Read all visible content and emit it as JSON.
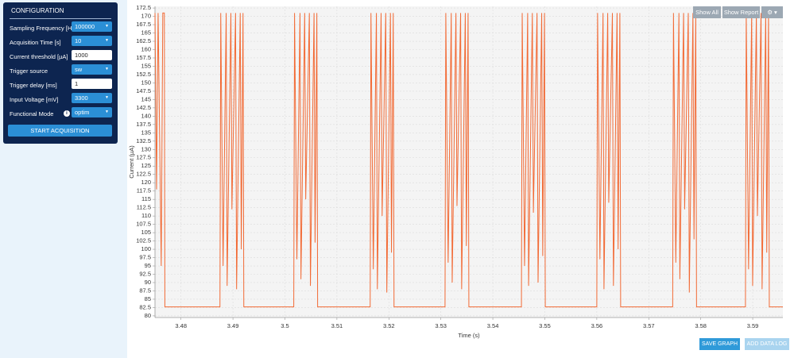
{
  "panel": {
    "title": "CONFIGURATION",
    "fields": [
      {
        "label": "Sampling Frequency [Hz]",
        "value": "100000"
      },
      {
        "label": "Acquisition Time [s]",
        "value": "10"
      },
      {
        "label": "Current threshold [µA]",
        "value": "1000"
      },
      {
        "label": "Trigger source",
        "value": "sw"
      },
      {
        "label": "Trigger delay [ms]",
        "value": "1"
      },
      {
        "label": "Input Voltage [mV]",
        "value": "3300"
      },
      {
        "label": "Functional Mode",
        "value": "optim"
      }
    ],
    "button": "START ACQUISITION"
  },
  "toolbar": {
    "show_all": "Show All",
    "show_report": "Show Report"
  },
  "footer_buttons": [
    "SAVE GRAPH",
    "ADD DATA LOG"
  ],
  "chart_data": {
    "type": "line",
    "xlabel": "Time (s)",
    "ylabel": "Current (µA)",
    "color": "#f26a35",
    "grid": true,
    "xlim": [
      3.475,
      3.5958
    ],
    "ylim": [
      79.5,
      173
    ],
    "xticks": [
      3.48,
      3.49,
      3.5,
      3.51,
      3.52,
      3.53,
      3.54,
      3.55,
      3.56,
      3.57,
      3.58,
      3.59
    ],
    "yticks": [
      80,
      82.5,
      85,
      87.5,
      90,
      92.5,
      95,
      97.5,
      100,
      102.5,
      105,
      107.5,
      110,
      112.5,
      115,
      117.5,
      120,
      122.5,
      125,
      127.5,
      130,
      132.5,
      135,
      137.5,
      140,
      142.5,
      145,
      147.5,
      150,
      152.5,
      155,
      157.5,
      160,
      162.5,
      165,
      167.5,
      170,
      172.5
    ],
    "x": [
      3.475,
      3.4753,
      3.4756,
      3.4762,
      3.4765,
      3.4768,
      3.4769,
      3.4875,
      3.48765,
      3.4881,
      3.4887,
      3.48888,
      3.4896,
      3.4898,
      3.4905,
      3.4907,
      3.4914,
      3.4916,
      3.49194,
      3.49209,
      3.5017,
      3.50185,
      3.5023,
      3.5029,
      3.50308,
      3.5038,
      3.504,
      3.5047,
      3.5049,
      3.5056,
      3.5058,
      3.50614,
      3.50629,
      3.5164,
      3.51655,
      3.517,
      3.5176,
      3.51778,
      3.5185,
      3.5187,
      3.5194,
      3.5196,
      3.5203,
      3.5205,
      3.52084,
      3.52099,
      3.5308,
      3.53095,
      3.5314,
      3.532,
      3.53218,
      3.5329,
      3.5331,
      3.5338,
      3.534,
      3.5347,
      3.5349,
      3.53524,
      3.53539,
      3.5455,
      3.54565,
      3.5461,
      3.5467,
      3.54688,
      3.5476,
      3.5478,
      3.5485,
      3.5487,
      3.5494,
      3.5496,
      3.54994,
      3.55009,
      3.56,
      3.56015,
      3.5606,
      3.5612,
      3.56138,
      3.5621,
      3.5623,
      3.563,
      3.5632,
      3.5639,
      3.5641,
      3.56444,
      3.56459,
      3.5746,
      3.57475,
      3.5752,
      3.5758,
      3.57598,
      3.5767,
      3.5769,
      3.5776,
      3.5778,
      3.5785,
      3.5787,
      3.57904,
      3.57919,
      3.5886,
      3.58875,
      3.5892,
      3.5898,
      3.58998,
      3.5907,
      3.5909,
      3.5916,
      3.5918,
      3.5925,
      3.5927,
      3.59304,
      3.59319,
      3.5958
    ],
    "values": [
      171,
      118,
      171,
      95,
      171,
      171,
      82.7,
      82.7,
      171,
      95,
      171,
      89,
      171,
      112,
      171,
      88,
      171,
      100,
      171,
      82.7,
      82.7,
      171,
      97,
      171,
      91,
      171,
      115,
      171,
      89,
      171,
      102,
      171,
      82.7,
      82.7,
      171,
      94,
      171,
      88,
      171,
      110,
      171,
      87,
      171,
      99,
      171,
      82.7,
      82.7,
      171,
      96,
      171,
      90,
      171,
      113,
      171,
      88,
      171,
      101,
      171,
      82.7,
      82.7,
      171,
      95,
      171,
      89,
      171,
      111,
      171,
      90,
      171,
      98,
      171,
      82.7,
      82.7,
      171,
      97,
      171,
      88,
      171,
      114,
      171,
      89,
      171,
      100,
      171,
      82.7,
      82.7,
      171,
      96,
      171,
      91,
      171,
      112,
      171,
      87,
      171,
      103,
      171,
      82.7,
      82.7,
      171,
      94,
      171,
      89,
      171,
      110,
      171,
      88,
      171,
      99,
      171,
      82.7,
      82.7
    ]
  }
}
